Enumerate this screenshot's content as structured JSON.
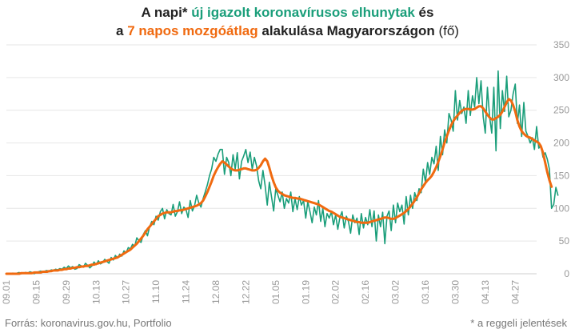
{
  "title": {
    "line1_a": "A napi* ",
    "line1_b": "új igazolt koronavírusos elhunytak",
    "line1_c": " és",
    "line2_a": "a ",
    "line2_b": "7 napos mozgóátlag",
    "line2_c": " alakulása Magyarországon ",
    "line2_d": "(fő)"
  },
  "footer": {
    "source": "Forrás: koronavirus.gov.hu, Portfolio",
    "note": "* a reggeli jelentések"
  },
  "colors": {
    "daily": "#1a9e7a",
    "average": "#f06a10",
    "grid": "#e6e6e6",
    "tick": "#999999"
  },
  "chart_data": {
    "type": "line",
    "ylim": [
      0,
      350
    ],
    "yticks": [
      0,
      50,
      100,
      150,
      200,
      250,
      300,
      350
    ],
    "y_axis_side": "right",
    "grid": "horizontal",
    "x_start": "09.01",
    "x_ticks": [
      "09.01",
      "09.15",
      "09.29",
      "10.13",
      "10.27",
      "11.10",
      "11.24",
      "12.08",
      "12.22",
      "01.05",
      "01.19",
      "02.02",
      "02.16",
      "03.02",
      "03.16",
      "03.30",
      "04.13",
      "04.27"
    ],
    "series": [
      {
        "key": "daily",
        "values": [
          0,
          0,
          0,
          1,
          0,
          1,
          2,
          0,
          1,
          2,
          1,
          3,
          2,
          0,
          2,
          3,
          4,
          3,
          4,
          5,
          3,
          6,
          5,
          7,
          6,
          8,
          7,
          10,
          8,
          12,
          9,
          11,
          7,
          8,
          14,
          12,
          10,
          16,
          13,
          9,
          12,
          18,
          14,
          20,
          15,
          17,
          22,
          19,
          16,
          25,
          21,
          28,
          24,
          30,
          27,
          35,
          32,
          40,
          38,
          45,
          42,
          55,
          50,
          48,
          60,
          66,
          58,
          72,
          80,
          75,
          88,
          82,
          95,
          100,
          84,
          98,
          92,
          90,
          106,
          88,
          95,
          110,
          92,
          102,
          98,
          86,
          112,
          96,
          104,
          120,
          108,
          102,
          115,
          125,
          136,
          150,
          160,
          178,
          172,
          183,
          190,
          190,
          152,
          178,
          170,
          150,
          182,
          160,
          185,
          145,
          172,
          180,
          190,
          170,
          186,
          160,
          178,
          165,
          142,
          130,
          158,
          135,
          105,
          140,
          118,
          96,
          130,
          120,
          110,
          125,
          100,
          115,
          108,
          125,
          95,
          115,
          98,
          118,
          105,
          112,
          85,
          110,
          95,
          78,
          102,
          90,
          112,
          80,
          100,
          72,
          92,
          85,
          95,
          75,
          90,
          68,
          86,
          95,
          70,
          88,
          80,
          62,
          90,
          78,
          85,
          60,
          92,
          70,
          86,
          75,
          98,
          72,
          96,
          50,
          90,
          72,
          94,
          46,
          88,
          96,
          66,
          105,
          78,
          108,
          95,
          105,
          76,
          118,
          90,
          120,
          100,
          124,
          112,
          130,
          124,
          160,
          140,
          170,
          152,
          178,
          168,
          195,
          158,
          210,
          182,
          220,
          200,
          245,
          235,
          218,
          280,
          235,
          265,
          245,
          255,
          230,
          280,
          242,
          272,
          255,
          300,
          260,
          295,
          240,
          215,
          285,
          240,
          215,
          285,
          188,
          310,
          222,
          280,
          248,
          302,
          240,
          250,
          275,
          290,
          230,
          258,
          210,
          262,
          218,
          210,
          200,
          208,
          190,
          225,
          192,
          196,
          178,
          185,
          175,
          160,
          100,
          106,
          132,
          120
        ]
      },
      {
        "key": "average",
        "values": [
          0,
          0,
          0,
          0,
          0,
          0,
          0,
          1,
          1,
          1,
          1,
          1,
          1,
          2,
          2,
          2,
          2,
          3,
          3,
          3,
          4,
          4,
          5,
          5,
          5,
          6,
          6,
          7,
          7,
          8,
          8,
          9,
          9,
          10,
          10,
          11,
          11,
          12,
          12,
          13,
          14,
          14,
          15,
          16,
          17,
          18,
          19,
          20,
          21,
          22,
          23,
          24,
          25,
          27,
          29,
          31,
          33,
          35,
          37,
          40,
          43,
          46,
          50,
          54,
          58,
          63,
          68,
          72,
          76,
          80,
          84,
          88,
          90,
          92,
          93,
          94,
          94,
          94,
          95,
          96,
          96,
          97,
          97,
          98,
          99,
          100,
          101,
          102,
          103,
          104,
          106,
          108,
          112,
          118,
          125,
          133,
          141,
          150,
          157,
          163,
          168,
          172,
          170,
          167,
          164,
          161,
          159,
          158,
          158,
          159,
          160,
          161,
          161,
          160,
          159,
          158,
          158,
          159,
          162,
          166,
          172,
          176,
          172,
          162,
          150,
          140,
          132,
          127,
          124,
          122,
          120,
          119,
          118,
          117,
          116,
          116,
          115,
          115,
          114,
          113,
          112,
          111,
          110,
          109,
          108,
          107,
          106,
          104,
          102,
          100,
          98,
          96,
          95,
          93,
          91,
          89,
          87,
          86,
          85,
          84,
          83,
          82,
          81,
          80,
          79,
          79,
          78,
          78,
          78,
          78,
          79,
          80,
          81,
          82,
          83,
          84,
          85,
          86,
          86,
          85,
          84,
          84,
          85,
          87,
          89,
          91,
          93,
          96,
          99,
          103,
          107,
          112,
          117,
          123,
          129,
          134,
          139,
          143,
          146,
          150,
          156,
          163,
          171,
          180,
          190,
          201,
          210,
          219,
          227,
          233,
          238,
          242,
          246,
          249,
          251,
          252,
          252,
          251,
          251,
          252,
          254,
          256,
          256,
          253,
          248,
          243,
          239,
          236,
          236,
          238,
          240,
          243,
          248,
          255,
          262,
          267,
          265,
          258,
          248,
          235,
          225,
          218,
          214,
          211,
          209,
          208,
          206,
          204,
          202,
          200,
          195,
          185,
          170,
          155,
          143,
          133
        ]
      }
    ]
  }
}
